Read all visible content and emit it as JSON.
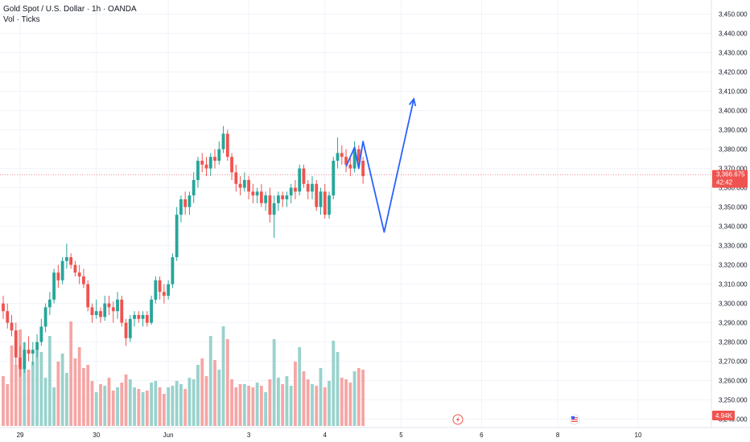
{
  "header": {
    "symbol_line": "Gold Spot / U.S. Dollar · 1h · OANDA",
    "volume_line": "Vol · Ticks"
  },
  "price_label": {
    "value": "3,366.675",
    "countdown": "42:42",
    "hidden_tick": "3,360.000"
  },
  "volume_label": {
    "value": "4.94K"
  },
  "colors": {
    "up": "#26a69a",
    "down": "#ef5350",
    "vol_up": "#99d2cc",
    "vol_down": "#f5a6a5",
    "projection": "#2962ff",
    "grid": "#f0f3fa",
    "price_line": "#ef5350"
  },
  "icons": [
    "lightning-icon",
    "us-flag-icon"
  ],
  "chart_data": {
    "type": "candlestick",
    "title": "Gold Spot / U.S. Dollar · 1h · OANDA",
    "y_ticks": [
      "3,450.000",
      "3,440.000",
      "3,430.000",
      "3,420.000",
      "3,410.000",
      "3,400.000",
      "3,390.000",
      "3,380.000",
      "3,370.000",
      "3,360.000",
      "3,350.000",
      "3,340.000",
      "3,330.000",
      "3,320.000",
      "3,310.000",
      "3,300.000",
      "3,290.000",
      "3,280.000",
      "3,270.000",
      "3,260.000",
      "3,250.000",
      "3,240.000"
    ],
    "y_tick_values": [
      3450,
      3440,
      3430,
      3420,
      3410,
      3400,
      3390,
      3380,
      3370,
      3360,
      3350,
      3340,
      3330,
      3320,
      3310,
      3300,
      3290,
      3280,
      3270,
      3260,
      3250,
      3240
    ],
    "ylim": [
      3240,
      3455
    ],
    "x_ticks": [
      "29",
      "30",
      "Jun",
      "3",
      "4",
      "5",
      "6",
      "8",
      "10"
    ],
    "x_tick_index": [
      4,
      22,
      39,
      58,
      76,
      94,
      113,
      131,
      150
    ],
    "last_price": 3366.675,
    "ohlc": [
      [
        3300,
        3304,
        3292,
        3296
      ],
      [
        3296,
        3300,
        3287,
        3290
      ],
      [
        3290,
        3294,
        3283,
        3286
      ],
      [
        3286,
        3290,
        3268,
        3272
      ],
      [
        3272,
        3278,
        3262,
        3266
      ],
      [
        3266,
        3280,
        3264,
        3276
      ],
      [
        3276,
        3283,
        3270,
        3274
      ],
      [
        3274,
        3280,
        3268,
        3276
      ],
      [
        3276,
        3284,
        3272,
        3280
      ],
      [
        3280,
        3292,
        3278,
        3288
      ],
      [
        3288,
        3300,
        3285,
        3298
      ],
      [
        3298,
        3306,
        3294,
        3302
      ],
      [
        3302,
        3318,
        3300,
        3316
      ],
      [
        3316,
        3320,
        3308,
        3312
      ],
      [
        3312,
        3324,
        3310,
        3322
      ],
      [
        3322,
        3331,
        3318,
        3324
      ],
      [
        3324,
        3326,
        3318,
        3320
      ],
      [
        3320,
        3322,
        3314,
        3316
      ],
      [
        3316,
        3320,
        3310,
        3314
      ],
      [
        3314,
        3318,
        3308,
        3310
      ],
      [
        3310,
        3312,
        3296,
        3298
      ],
      [
        3298,
        3300,
        3290,
        3294
      ],
      [
        3294,
        3302,
        3292,
        3296
      ],
      [
        3296,
        3298,
        3290,
        3293
      ],
      [
        3293,
        3304,
        3291,
        3300
      ],
      [
        3300,
        3304,
        3294,
        3298
      ],
      [
        3298,
        3301,
        3290,
        3296
      ],
      [
        3296,
        3306,
        3292,
        3302
      ],
      [
        3302,
        3304,
        3288,
        3290
      ],
      [
        3290,
        3292,
        3278,
        3282
      ],
      [
        3282,
        3294,
        3280,
        3292
      ],
      [
        3292,
        3296,
        3288,
        3294
      ],
      [
        3294,
        3296,
        3290,
        3292
      ],
      [
        3292,
        3296,
        3288,
        3294
      ],
      [
        3294,
        3296,
        3288,
        3290
      ],
      [
        3290,
        3304,
        3289,
        3302
      ],
      [
        3302,
        3314,
        3300,
        3312
      ],
      [
        3312,
        3314,
        3302,
        3306
      ],
      [
        3306,
        3310,
        3300,
        3304
      ],
      [
        3304,
        3312,
        3302,
        3310
      ],
      [
        3310,
        3326,
        3308,
        3324
      ],
      [
        3324,
        3350,
        3322,
        3346
      ],
      [
        3346,
        3356,
        3342,
        3354
      ],
      [
        3354,
        3358,
        3346,
        3350
      ],
      [
        3350,
        3358,
        3346,
        3356
      ],
      [
        3356,
        3368,
        3352,
        3364
      ],
      [
        3364,
        3376,
        3360,
        3374
      ],
      [
        3374,
        3378,
        3368,
        3372
      ],
      [
        3372,
        3376,
        3366,
        3370
      ],
      [
        3370,
        3378,
        3366,
        3376
      ],
      [
        3376,
        3380,
        3370,
        3374
      ],
      [
        3374,
        3384,
        3372,
        3380
      ],
      [
        3380,
        3392,
        3378,
        3388
      ],
      [
        3388,
        3390,
        3374,
        3376
      ],
      [
        3376,
        3378,
        3364,
        3368
      ],
      [
        3368,
        3372,
        3358,
        3362
      ],
      [
        3362,
        3366,
        3356,
        3360
      ],
      [
        3360,
        3368,
        3358,
        3364
      ],
      [
        3364,
        3366,
        3354,
        3358
      ],
      [
        3358,
        3362,
        3352,
        3356
      ],
      [
        3356,
        3360,
        3352,
        3358
      ],
      [
        3358,
        3362,
        3350,
        3352
      ],
      [
        3352,
        3358,
        3348,
        3356
      ],
      [
        3356,
        3360,
        3342,
        3346
      ],
      [
        3346,
        3356,
        3334,
        3352
      ],
      [
        3352,
        3358,
        3348,
        3356
      ],
      [
        3356,
        3358,
        3350,
        3354
      ],
      [
        3354,
        3358,
        3350,
        3356
      ],
      [
        3356,
        3362,
        3352,
        3360
      ],
      [
        3360,
        3364,
        3354,
        3358
      ],
      [
        3358,
        3372,
        3356,
        3370
      ],
      [
        3370,
        3372,
        3360,
        3362
      ],
      [
        3362,
        3364,
        3354,
        3358
      ],
      [
        3358,
        3366,
        3354,
        3362
      ],
      [
        3362,
        3364,
        3348,
        3350
      ],
      [
        3350,
        3360,
        3346,
        3358
      ],
      [
        3358,
        3362,
        3344,
        3346
      ],
      [
        3346,
        3358,
        3344,
        3356
      ],
      [
        3356,
        3376,
        3354,
        3374
      ],
      [
        3374,
        3386,
        3370,
        3378
      ],
      [
        3378,
        3382,
        3372,
        3376
      ],
      [
        3376,
        3380,
        3368,
        3372
      ],
      [
        3372,
        3376,
        3366,
        3370
      ],
      [
        3370,
        3384,
        3368,
        3380
      ],
      [
        3380,
        3382,
        3372,
        3374
      ],
      [
        3374,
        3376,
        3362,
        3366
      ]
    ],
    "volume": [
      62,
      52,
      100,
      76,
      120,
      104,
      70,
      80,
      96,
      92,
      60,
      112,
      48,
      80,
      90,
      66,
      130,
      84,
      98,
      72,
      76,
      56,
      42,
      52,
      50,
      60,
      44,
      48,
      54,
      64,
      58,
      48,
      46,
      42,
      44,
      54,
      56,
      48,
      40,
      48,
      50,
      56,
      52,
      46,
      60,
      58,
      76,
      84,
      62,
      112,
      82,
      70,
      124,
      108,
      58,
      48,
      52,
      52,
      50,
      48,
      54,
      50,
      42,
      58,
      108,
      60,
      52,
      62,
      50,
      80,
      98,
      68,
      58,
      52,
      50,
      72,
      48,
      56,
      106,
      92,
      60,
      58,
      54,
      68,
      72,
      70
    ],
    "annotations": {
      "type": "projection-path",
      "path": [
        [
          81,
          3371
        ],
        [
          83,
          3381
        ],
        [
          84,
          3370
        ],
        [
          85,
          3384
        ],
        [
          90,
          3337
        ],
        [
          97,
          3406
        ]
      ]
    }
  }
}
